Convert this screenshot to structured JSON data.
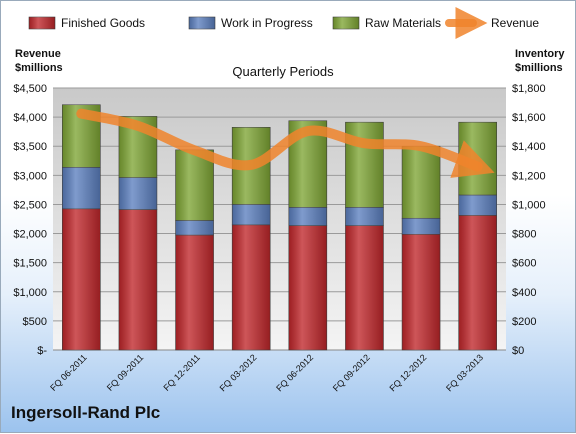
{
  "company": "Ingersoll-Rand Plc",
  "chart_data": {
    "type": "bar",
    "stacked": true,
    "subtitle": "Quarterly Periods",
    "left_axis_title": [
      "Revenue",
      "$millions"
    ],
    "right_axis_title": [
      "Inventory",
      "$millions"
    ],
    "categories": [
      "FQ 06-2011",
      "FQ 09-2011",
      "FQ 12-2011",
      "FQ 03-2012",
      "FQ 06-2012",
      "FQ 09-2012",
      "FQ 12-2012",
      "FQ 03-2013"
    ],
    "series": [
      {
        "name": "Finished Goods",
        "axis": "right",
        "color": "#c0262a",
        "values": [
          970,
          965,
          790,
          860,
          855,
          855,
          795,
          925
        ]
      },
      {
        "name": "Work in Progress",
        "axis": "right",
        "color": "#5b7fbf",
        "values": [
          285,
          220,
          100,
          140,
          125,
          125,
          110,
          140
        ]
      },
      {
        "name": "Raw Materials",
        "axis": "right",
        "color": "#7ea534",
        "values": [
          430,
          420,
          485,
          530,
          595,
          585,
          495,
          500
        ]
      },
      {
        "name": "Revenue",
        "axis": "left",
        "type": "line",
        "color": "#f0842c",
        "values": [
          4060,
          3850,
          3430,
          3180,
          3760,
          3550,
          3500,
          3150
        ]
      }
    ],
    "left_axis": {
      "min": 0,
      "max": 4500,
      "step": 500,
      "ticks": [
        "$-",
        "$500",
        "$1,000",
        "$1,500",
        "$2,000",
        "$2,500",
        "$3,000",
        "$3,500",
        "$4,000",
        "$4,500"
      ]
    },
    "right_axis": {
      "min": 0,
      "max": 1800,
      "step": 200,
      "ticks": [
        "$0",
        "$200",
        "$400",
        "$600",
        "$800",
        "$1,000",
        "$1,200",
        "$1,400",
        "$1,600",
        "$1,800"
      ]
    },
    "legend_position": "top",
    "grid": true
  }
}
